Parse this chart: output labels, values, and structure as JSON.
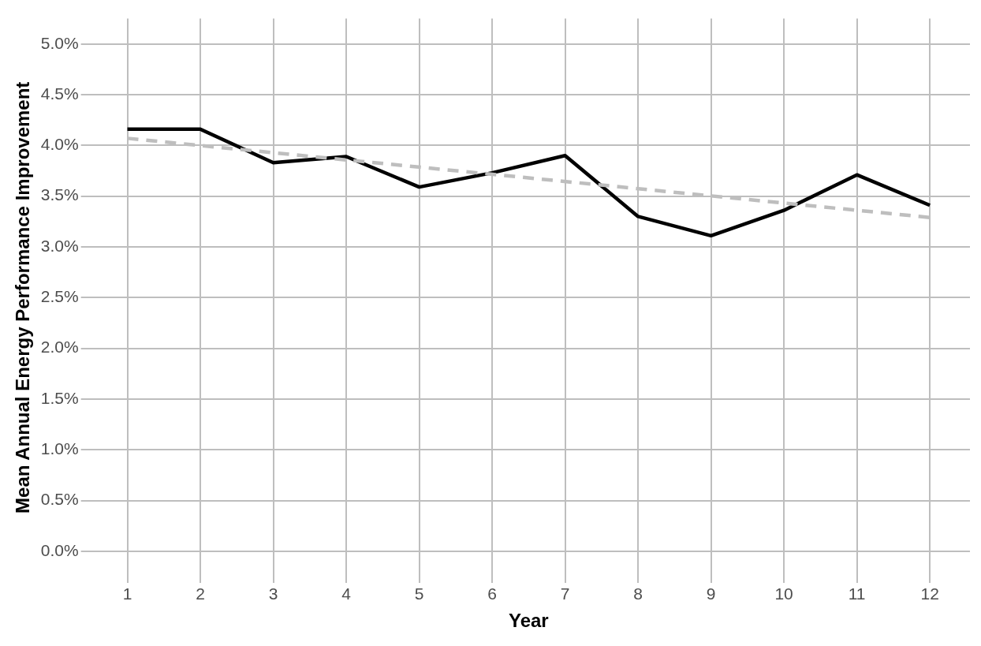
{
  "chart_data": {
    "type": "line",
    "xlabel": "Year",
    "ylabel": "Mean Annual Energy Performance Improvement",
    "x": [
      1,
      2,
      3,
      4,
      5,
      6,
      7,
      8,
      9,
      10,
      11,
      12
    ],
    "series": [
      {
        "color": "#000000",
        "line_style": "solid",
        "values": [
          4.16,
          4.16,
          3.83,
          3.89,
          3.59,
          3.73,
          3.9,
          3.3,
          3.11,
          3.36,
          3.71,
          3.41
        ]
      },
      {
        "color": "#bebebe",
        "line_style": "dashed",
        "x": [
          1,
          12
        ],
        "values": [
          4.07,
          3.29
        ]
      }
    ],
    "xlim": [
      0.45,
      12.55
    ],
    "xticks": [
      1,
      2,
      3,
      4,
      5,
      6,
      7,
      8,
      9,
      10,
      11,
      12
    ],
    "ylim": [
      -0.25,
      5.25
    ],
    "yticks": [
      {
        "value": 0,
        "label": "0.0%"
      },
      {
        "value": 0.5,
        "label": "0.5%"
      },
      {
        "value": 1,
        "label": "1.0%"
      },
      {
        "value": 1.5,
        "label": "1.5%"
      },
      {
        "value": 2,
        "label": "2.0%"
      },
      {
        "value": 2.5,
        "label": "2.5%"
      },
      {
        "value": 3,
        "label": "3.0%"
      },
      {
        "value": 3.5,
        "label": "3.5%"
      },
      {
        "value": 4,
        "label": "4.0%"
      },
      {
        "value": 4.5,
        "label": "4.5%"
      },
      {
        "value": 5,
        "label": "5.0%"
      }
    ],
    "grid": true,
    "legend": false,
    "marker": "none"
  }
}
